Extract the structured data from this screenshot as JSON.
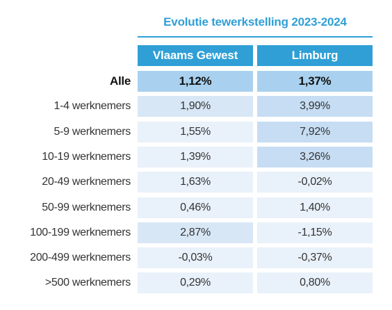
{
  "title": "Evolutie tewerkstelling 2023-2024",
  "chart_data": {
    "type": "table",
    "title": "Evolutie tewerkstelling 2023-2024",
    "columns": [
      "Vlaams Gewest",
      "Limburg"
    ],
    "rows": [
      {
        "label": "Alle",
        "total": true,
        "values": [
          "1,12%",
          "1,37%"
        ],
        "numeric": [
          1.12,
          1.37
        ]
      },
      {
        "label": "1-4 werknemers",
        "total": false,
        "values": [
          "1,90%",
          "3,99%"
        ],
        "numeric": [
          1.9,
          3.99
        ]
      },
      {
        "label": "5-9 werknemers",
        "total": false,
        "values": [
          "1,55%",
          "7,92%"
        ],
        "numeric": [
          1.55,
          7.92
        ]
      },
      {
        "label": "10-19 werknemers",
        "total": false,
        "values": [
          "1,39%",
          "3,26%"
        ],
        "numeric": [
          1.39,
          3.26
        ]
      },
      {
        "label": "20-49 werknemers",
        "total": false,
        "values": [
          "1,63%",
          "-0,02%"
        ],
        "numeric": [
          1.63,
          -0.02
        ]
      },
      {
        "label": "50-99 werknemers",
        "total": false,
        "values": [
          "0,46%",
          "1,40%"
        ],
        "numeric": [
          0.46,
          1.4
        ]
      },
      {
        "label": "100-199 werknemers",
        "total": false,
        "values": [
          "2,87%",
          "-1,15%"
        ],
        "numeric": [
          2.87,
          -1.15
        ]
      },
      {
        "label": "200-499 werknemers",
        "total": false,
        "values": [
          "-0,03%",
          "-0,37%"
        ],
        "numeric": [
          -0.03,
          -0.37
        ]
      },
      {
        "label": ">500 werknemers",
        "total": false,
        "values": [
          "0,29%",
          "0,80%"
        ],
        "numeric": [
          0.29,
          0.8
        ]
      }
    ]
  },
  "colors": {
    "header_blue": "#2f9fd6",
    "total_fill": "#a9d1ef",
    "cell_light": "#e9f1fa",
    "cell_medium": "#d8e7f6",
    "cell_strong": "#c6ddf3"
  }
}
